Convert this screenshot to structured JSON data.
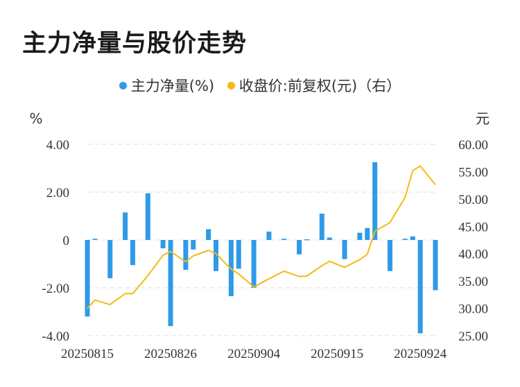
{
  "title": "主力净量与股价走势",
  "colors": {
    "bar": "#2e9ae8",
    "line": "#f5b914",
    "grid": "#dddddd"
  },
  "chart_data": {
    "type": "bar+line",
    "legend": [
      {
        "name": "主力净量(%)",
        "color": "#2e9ae8",
        "marker": "dot"
      },
      {
        "name": "收盘价:前复权(元)（右）",
        "color": "#f5b914",
        "marker": "dot"
      }
    ],
    "legend_position": "top",
    "left_unit": "%",
    "right_unit": "元",
    "left_ticks": [
      "4.00",
      "2.00",
      "0",
      "-2.00",
      "-4.00"
    ],
    "left_range": [
      -4,
      4
    ],
    "right_ticks": [
      "60.00",
      "55.00",
      "50.00",
      "45.00",
      "40.00",
      "35.00",
      "30.00",
      "25.00"
    ],
    "right_range": [
      25,
      60
    ],
    "x_ticks": [
      "20250815",
      "20250826",
      "20250904",
      "20250915",
      "20250924"
    ],
    "x_tick_indices": [
      0,
      11,
      22,
      33,
      44
    ],
    "grid": true,
    "series": [
      {
        "name": "主力净量(%)",
        "type": "bar",
        "values": [
          -3.2,
          0.05,
          -1.6,
          1.15,
          -1.05,
          1.95,
          -0.35,
          -3.6,
          -1.25,
          -0.4,
          0.45,
          -1.3,
          -2.35,
          -1.2,
          -2.0,
          0.35,
          0.05,
          -0.6,
          0.03,
          1.1,
          0.1,
          -0.8,
          0.3,
          0.5,
          3.25,
          -1.3,
          0.05,
          0.15,
          -3.9,
          -2.1
        ]
      },
      {
        "name": "收盘价:前复权(元)",
        "type": "line",
        "values": [
          30.0,
          31.5,
          30.7,
          32.7,
          32.7,
          36.0,
          39.7,
          40.4,
          38.5,
          39.6,
          40.6,
          40.0,
          37.2,
          36.3,
          33.9,
          35.4,
          36.8,
          35.8,
          35.9,
          37.8,
          38.6,
          37.5,
          38.9,
          39.9,
          44.1,
          45.7,
          50.3,
          55.2,
          56.0,
          52.6
        ]
      }
    ],
    "bar_day_indices": [
      0,
      1,
      3,
      5,
      6,
      8,
      10,
      11,
      13,
      14,
      16,
      17,
      19,
      20,
      22,
      24,
      26,
      28,
      29,
      31,
      32,
      34,
      36,
      37,
      38,
      40,
      42,
      43,
      44,
      46
    ]
  }
}
